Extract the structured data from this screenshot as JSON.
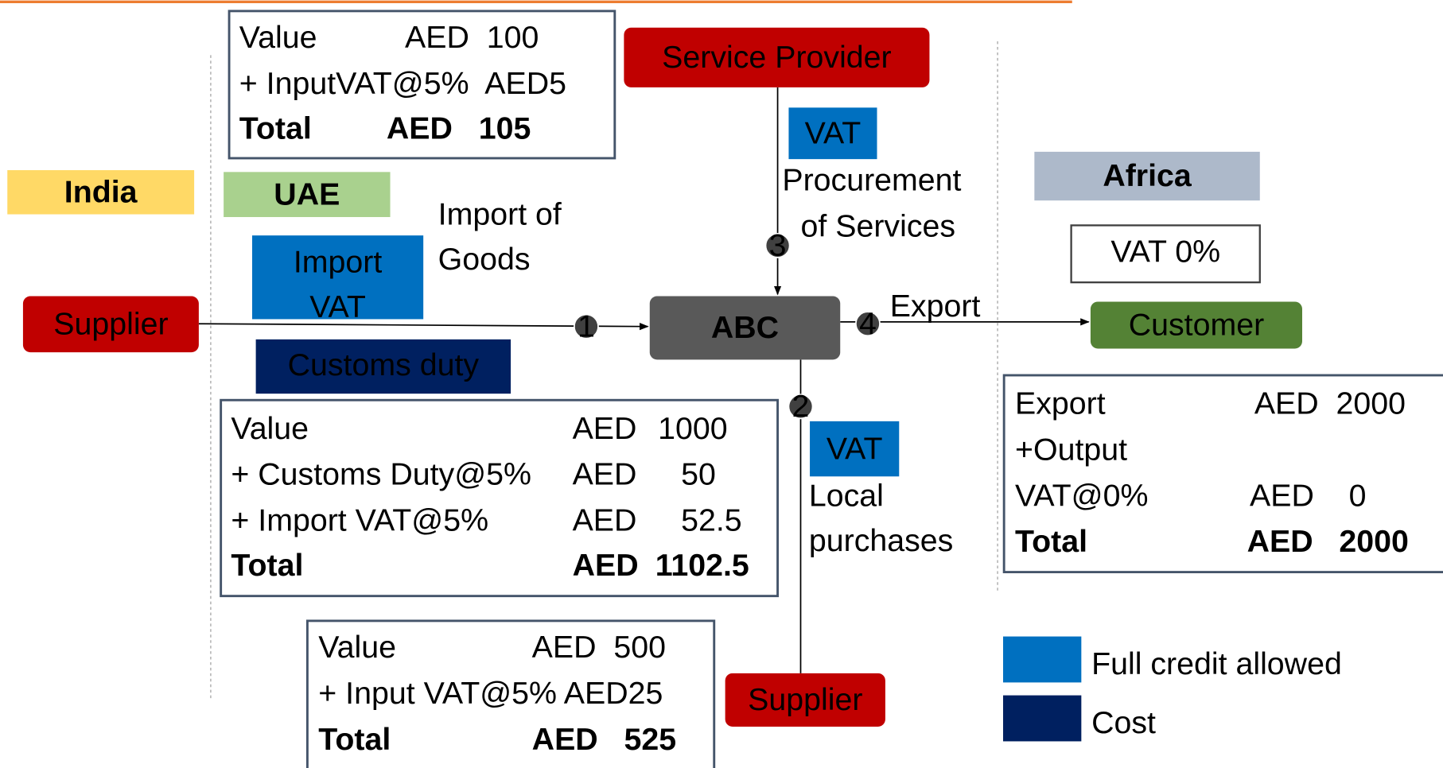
{
  "regions": [
    {
      "label": "India"
    },
    {
      "label": "UAE"
    },
    {
      "label": "Africa"
    }
  ],
  "nodes": [
    {
      "label": "Service Provider"
    },
    {
      "label": "Supplier"
    },
    {
      "label": "ABC"
    },
    {
      "label": "Customer"
    },
    {
      "label": "Supplier"
    }
  ],
  "tags": [
    {
      "lines": [
        "Import",
        "VAT"
      ]
    },
    {
      "lines": [
        "Customs duty"
      ]
    },
    {
      "lines": [
        "VAT"
      ]
    },
    {
      "lines": [
        "VAT"
      ]
    },
    {
      "lines": [
        "VAT 0%"
      ]
    }
  ],
  "flows": [
    {
      "step": "1",
      "lines": [
        "Import of",
        "Goods"
      ]
    },
    {
      "step": "2",
      "lines": [
        "Local",
        "purchases"
      ]
    },
    {
      "step": "3",
      "lines": [
        "Procurement",
        "of Services"
      ]
    },
    {
      "step": "4",
      "lines": [
        "Export"
      ]
    }
  ],
  "boxes": [
    {
      "rows": [
        [
          "Value",
          "AED  100"
        ],
        [
          "+ InputVAT@5%  AED5"
        ],
        [
          "Total",
          "AED   105"
        ]
      ]
    },
    {
      "rows": [
        [
          "Value",
          "AED",
          "1000"
        ],
        [
          "+ Customs Duty@5%",
          "AED",
          "50"
        ],
        [
          "+ Import VAT@5%",
          "AED",
          "52.5"
        ],
        [
          "Total",
          "AED",
          "1102.5"
        ]
      ]
    },
    {
      "rows": [
        [
          "Value",
          "AED  500"
        ],
        [
          "+ Input VAT@5% AED25"
        ],
        [
          "Total",
          "AED   525"
        ]
      ]
    },
    {
      "rows": [
        [
          "Export",
          "AED  2000"
        ],
        [
          "+Output"
        ],
        [
          "VAT@0%",
          "AED    0"
        ],
        [
          "Total",
          "AED   2000"
        ]
      ]
    }
  ],
  "legend": [
    {
      "label": "Full credit allowed"
    },
    {
      "label": "Cost"
    }
  ]
}
